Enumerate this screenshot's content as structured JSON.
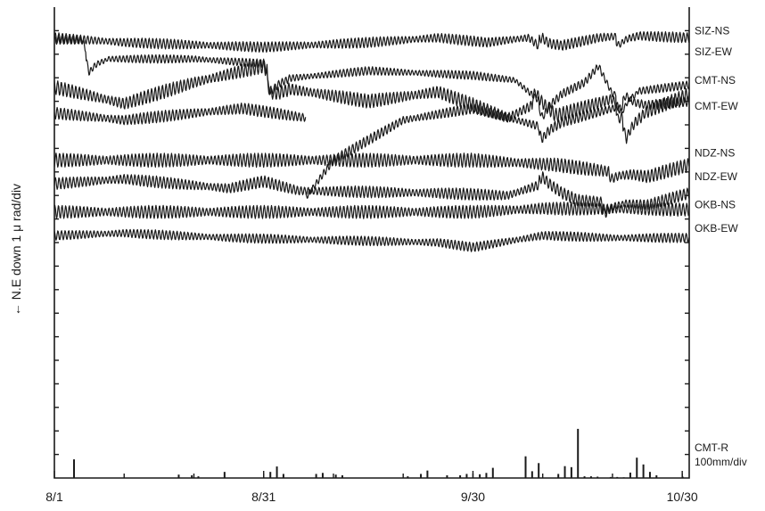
{
  "chart_data": {
    "type": "line",
    "ylabel": "← N.E down 1 μ rad/div",
    "x_tick_labels": [
      "8/1",
      "8/31",
      "9/30",
      "10/30"
    ],
    "x_ticks_days": [
      0,
      30,
      60,
      90
    ],
    "x_range_days": [
      0,
      91
    ],
    "y_divisions": 20,
    "series": [
      {
        "name": "SIZ-NS",
        "offset_div": 0.8,
        "amp_div": 0.22,
        "kp": [
          [
            0,
            0
          ],
          [
            10,
            -0.2
          ],
          [
            30,
            -0.4
          ],
          [
            45,
            -0.2
          ],
          [
            55,
            0
          ],
          [
            62,
            -0.2
          ],
          [
            68,
            0
          ],
          [
            70,
            -0.5
          ],
          [
            78,
            0
          ],
          [
            82,
            0.1
          ],
          [
            91,
            0
          ]
        ],
        "events": [
          [
            70,
            0.5
          ],
          [
            81,
            -0.4
          ]
        ],
        "xrange": [
          0,
          91
        ]
      },
      {
        "name": "SIZ-EW",
        "offset_div": 1.7,
        "amp_div": 0.18,
        "kp": [
          [
            0,
            0.8
          ],
          [
            4,
            0.8
          ],
          [
            5,
            0
          ],
          [
            20,
            0
          ],
          [
            30,
            -0.2
          ],
          [
            31,
            -0.9
          ],
          [
            45,
            -0.5
          ],
          [
            60,
            -0.7
          ],
          [
            66,
            -0.9
          ],
          [
            70,
            -1.9
          ],
          [
            76,
            -1.0
          ],
          [
            78,
            -0.3
          ],
          [
            80,
            -1.5
          ],
          [
            91,
            -1.1
          ]
        ],
        "events": [
          [
            5,
            -0.6
          ],
          [
            31,
            -0.6
          ],
          [
            70,
            -0.6
          ],
          [
            81,
            -1.2
          ]
        ],
        "xrange": [
          0,
          91
        ]
      },
      {
        "name": "CMT-NS",
        "offset_div": 2.9,
        "amp_div": 0.3,
        "kp": [
          [
            0,
            0
          ],
          [
            10,
            -0.7
          ],
          [
            20,
            0.2
          ],
          [
            30,
            0.9
          ],
          [
            32,
            0
          ],
          [
            45,
            -0.6
          ],
          [
            55,
            -0.2
          ],
          [
            65,
            -1.3
          ],
          [
            69,
            -0.7
          ],
          [
            72,
            -1.2
          ],
          [
            80,
            -0.5
          ],
          [
            82,
            -1.4
          ],
          [
            91,
            -0.3
          ]
        ],
        "events": [
          [
            31,
            -0.7
          ],
          [
            69,
            0.5
          ],
          [
            82,
            -0.8
          ]
        ],
        "xrange": [
          0,
          91
        ]
      },
      {
        "name": "CMT-EW",
        "offset_div": 4.0,
        "amp_div": 0.25,
        "kp": [
          [
            0,
            0
          ],
          [
            10,
            -0.3
          ],
          [
            27,
            0.2
          ],
          [
            36,
            -0.2
          ]
        ],
        "events": [],
        "xrange": [
          0,
          36
        ]
      },
      {
        "name": "CMT-EW",
        "offset_div": 4.0,
        "amp_div": 0.22,
        "kp": [
          [
            36,
            -3.6
          ],
          [
            40,
            -2.0
          ],
          [
            50,
            -0.3
          ],
          [
            60,
            0.2
          ],
          [
            70,
            -0.6
          ],
          [
            80,
            0.2
          ],
          [
            91,
            0.5
          ]
        ],
        "events": [
          [
            70,
            -0.5
          ],
          [
            82,
            0.5
          ]
        ],
        "xrange": [
          36,
          91
        ]
      },
      {
        "name": "NDZ-NS",
        "offset_div": 6.0,
        "amp_div": 0.3,
        "kp": [
          [
            0,
            0
          ],
          [
            30,
            0
          ],
          [
            60,
            0
          ],
          [
            72,
            -0.2
          ],
          [
            80,
            -0.5
          ],
          [
            85,
            -0.7
          ],
          [
            91,
            -0.2
          ]
        ],
        "events": [
          [
            80,
            -0.3
          ]
        ],
        "xrange": [
          0,
          91
        ]
      },
      {
        "name": "NDZ-EW",
        "offset_div": 7.0,
        "amp_div": 0.25,
        "kp": [
          [
            0,
            0
          ],
          [
            10,
            0.2
          ],
          [
            25,
            -0.2
          ],
          [
            30,
            0.1
          ],
          [
            35,
            -0.3
          ],
          [
            55,
            -0.4
          ],
          [
            65,
            -0.5
          ],
          [
            70,
            0.0
          ],
          [
            75,
            -0.7
          ],
          [
            85,
            -0.9
          ],
          [
            91,
            -0.4
          ]
        ],
        "events": [
          [
            70,
            0.3
          ],
          [
            79,
            -0.5
          ]
        ],
        "xrange": [
          0,
          91
        ]
      },
      {
        "name": "OKB-NS",
        "offset_div": 8.2,
        "amp_div": 0.28,
        "kp": [
          [
            0,
            0
          ],
          [
            30,
            0
          ],
          [
            60,
            0
          ],
          [
            70,
            0.15
          ],
          [
            91,
            0.1
          ]
        ],
        "events": [],
        "xrange": [
          0,
          91
        ]
      },
      {
        "name": "OKB-EW",
        "offset_div": 9.2,
        "amp_div": 0.2,
        "kp": [
          [
            0,
            0
          ],
          [
            10,
            0.1
          ],
          [
            25,
            -0.1
          ],
          [
            40,
            -0.2
          ],
          [
            55,
            -0.3
          ],
          [
            60,
            -0.5
          ],
          [
            70,
            0.0
          ],
          [
            80,
            -0.1
          ],
          [
            91,
            -0.1
          ]
        ],
        "events": [],
        "xrange": [
          0,
          91
        ]
      }
    ],
    "rainfall": {
      "name": "CMT-R",
      "unit": "100mm/div",
      "bars": [
        [
          3,
          55
        ],
        [
          19,
          10
        ],
        [
          21,
          8
        ],
        [
          22,
          5
        ],
        [
          26,
          18
        ],
        [
          33,
          18
        ],
        [
          34,
          34
        ],
        [
          35,
          12
        ],
        [
          40,
          12
        ],
        [
          41,
          15
        ],
        [
          43,
          10
        ],
        [
          44,
          8
        ],
        [
          54,
          5
        ],
        [
          56,
          12
        ],
        [
          57,
          22
        ],
        [
          60,
          8
        ],
        [
          62,
          8
        ],
        [
          63,
          12
        ],
        [
          65,
          11
        ],
        [
          66,
          15
        ],
        [
          67,
          30
        ],
        [
          72,
          64
        ],
        [
          73,
          20
        ],
        [
          74,
          44
        ],
        [
          77,
          12
        ],
        [
          78,
          35
        ],
        [
          79,
          32
        ],
        [
          80,
          145
        ],
        [
          81,
          5
        ],
        [
          82,
          5
        ],
        [
          83,
          4
        ],
        [
          85,
          3
        ],
        [
          86,
          3
        ],
        [
          87,
          2
        ],
        [
          88,
          16
        ],
        [
          89,
          60
        ],
        [
          90,
          40
        ],
        [
          91,
          18
        ],
        [
          92,
          8
        ],
        [
          96,
          4
        ]
      ]
    }
  }
}
